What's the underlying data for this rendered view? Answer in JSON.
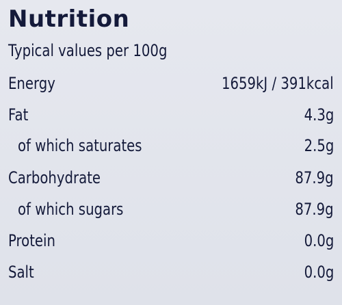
{
  "title": "Nutrition",
  "subtitle": "Typical values per 100g",
  "table": {
    "rows": [
      [
        "Energy",
        "1659kJ / 391kcal"
      ],
      [
        "Fat",
        "4.3g"
      ],
      [
        "of which saturates",
        "2.5g"
      ],
      [
        "Carbohydrate",
        "87.9g"
      ],
      [
        "of which sugars",
        "87.9g"
      ],
      [
        "Protein",
        "0.0g"
      ],
      [
        "Salt",
        "0.0g"
      ]
    ]
  }
}
